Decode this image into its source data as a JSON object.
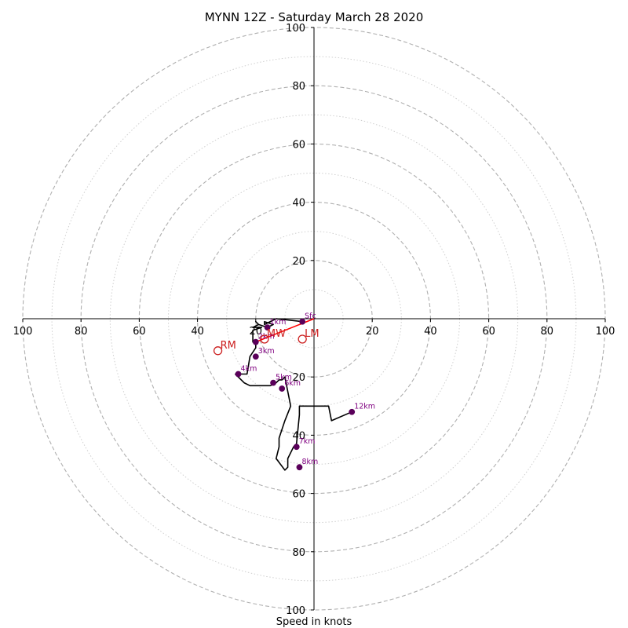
{
  "chart_data": {
    "type": "hodograph",
    "title": "MYNN 12Z - Saturday March 28 2020",
    "xlabel": "Speed in knots",
    "max_ring": 100,
    "rings_dashed": [
      20,
      40,
      60,
      80,
      100
    ],
    "rings_dotted": [
      10,
      30,
      50,
      70,
      90
    ],
    "tick_labels": [
      "100",
      "80",
      "60",
      "40",
      "20",
      "20",
      "40",
      "60",
      "80",
      "100"
    ],
    "tick_values": [
      -100,
      -80,
      -60,
      -40,
      -20,
      20,
      40,
      60,
      80,
      100
    ],
    "y_tick_labels_top": [
      "20",
      "40",
      "60",
      "80",
      "100"
    ],
    "y_tick_labels_bottom": [
      "20",
      "40",
      "60",
      "80",
      "100"
    ],
    "colors": {
      "hodograph": "#000000",
      "height_marker": "#5a005a",
      "height_label": "#800080",
      "motion": "#cc1f1f",
      "grid": "#b0b0b0",
      "shear": "#ff0000"
    },
    "hodograph_u": [
      -4,
      -13,
      -17,
      -17,
      -14,
      -16,
      -19,
      -20,
      -19,
      -21,
      -18,
      -21,
      -21,
      -20,
      -20,
      -22,
      -23,
      -26,
      -26,
      -27,
      -24,
      -22,
      -19,
      -15,
      -13,
      -13,
      -12,
      -11,
      -10,
      -8,
      -10,
      -11,
      -12,
      -12,
      -13,
      -10,
      -9,
      -9,
      -7,
      -6,
      -5,
      -5,
      -5,
      -4,
      2,
      5,
      6,
      13
    ],
    "hodograph_v": [
      -1,
      0,
      -2,
      -1,
      -2,
      -3,
      -2,
      -1,
      -2,
      -3,
      -3,
      -4,
      -8,
      -8,
      -10,
      -13,
      -19,
      -19,
      -19,
      -19,
      -22,
      -23,
      -23,
      -23,
      -22,
      -22,
      -21,
      -21,
      -20,
      -30,
      -35,
      -38,
      -41,
      -44,
      -48,
      -52,
      -51,
      -48,
      -44,
      -43,
      -33,
      -30,
      -30,
      -30,
      -30,
      -30,
      -35,
      -32
    ],
    "height_markers": [
      {
        "label": "Sfc",
        "u": -4,
        "v": -1
      },
      {
        "label": "1km",
        "u": -16,
        "v": -3
      },
      {
        "label": "2km",
        "u": -20,
        "v": -8
      },
      {
        "label": "3km",
        "u": -20,
        "v": -13
      },
      {
        "label": "4km",
        "u": -26,
        "v": -19
      },
      {
        "label": "5km",
        "u": -14,
        "v": -22
      },
      {
        "label": "6km",
        "u": -11,
        "v": -24
      },
      {
        "label": "7km",
        "u": -6,
        "v": -44
      },
      {
        "label": "8km",
        "u": -5,
        "v": -51
      },
      {
        "label": "12km",
        "u": 13,
        "v": -32
      }
    ],
    "storm_motions": [
      {
        "label": "RM",
        "u": -33,
        "v": -11
      },
      {
        "label": "LM",
        "u": -4,
        "v": -7
      },
      {
        "label": "MW",
        "u": -17,
        "v": -7
      }
    ],
    "shear_vector": {
      "u0": 0,
      "v0": 0,
      "u1": -20,
      "v1": -8
    }
  }
}
